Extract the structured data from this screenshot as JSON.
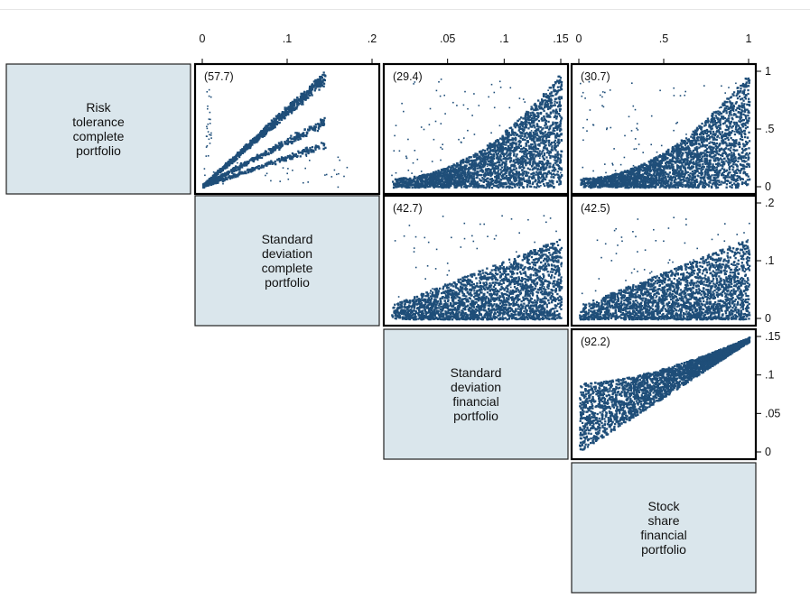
{
  "chart_data": {
    "type": "scatter",
    "variables": [
      {
        "id": "risk_tol",
        "label_lines": [
          "Risk",
          "tolerance",
          "complete",
          "portfolio"
        ],
        "range": [
          0,
          1
        ]
      },
      {
        "id": "sd_complete",
        "label_lines": [
          "Standard",
          "deviation",
          "complete",
          "portfolio"
        ],
        "range": [
          0,
          0.2
        ]
      },
      {
        "id": "sd_financial",
        "label_lines": [
          "Standard",
          "deviation",
          "financial",
          "portfolio"
        ],
        "range": [
          0,
          0.15
        ]
      },
      {
        "id": "stock_share",
        "label_lines": [
          "Stock",
          "share",
          "financial",
          "portfolio"
        ],
        "range": [
          0,
          1
        ]
      }
    ],
    "top_axes": [
      {
        "ticks": [
          0,
          0.1,
          0.2
        ],
        "tick_labels": [
          "0",
          ".1",
          ".2"
        ]
      },
      {
        "ticks": [
          0.05,
          0.1,
          0.15
        ],
        "tick_labels": [
          ".05",
          ".1",
          ".15"
        ]
      },
      {
        "ticks": [
          0,
          0.5,
          1
        ],
        "tick_labels": [
          "0",
          ".5",
          "1"
        ]
      }
    ],
    "right_axes": [
      {
        "ticks": [
          1,
          0.5,
          0
        ],
        "tick_labels": [
          "1",
          ".5",
          "0"
        ]
      },
      {
        "ticks": [
          0.2,
          0.1,
          0
        ],
        "tick_labels": [
          ".2",
          ".1",
          "0"
        ]
      },
      {
        "ticks": [
          0.15,
          0.1,
          0.05,
          0
        ],
        "tick_labels": [
          ".15",
          ".1",
          ".05",
          "0"
        ]
      }
    ],
    "panels": [
      {
        "row": 0,
        "col": 1,
        "x_var": "sd_complete",
        "y_var": "risk_tol",
        "annotation": "(57.7)",
        "pattern": "fan"
      },
      {
        "row": 0,
        "col": 2,
        "x_var": "sd_financial",
        "y_var": "risk_tol",
        "annotation": "(29.4)",
        "pattern": "rise"
      },
      {
        "row": 0,
        "col": 3,
        "x_var": "stock_share",
        "y_var": "risk_tol",
        "annotation": "(30.7)",
        "pattern": "rise"
      },
      {
        "row": 1,
        "col": 2,
        "x_var": "sd_financial",
        "y_var": "sd_complete",
        "annotation": "(42.7)",
        "pattern": "linear"
      },
      {
        "row": 1,
        "col": 3,
        "x_var": "stock_share",
        "y_var": "sd_complete",
        "annotation": "(42.5)",
        "pattern": "linear"
      },
      {
        "row": 2,
        "col": 3,
        "x_var": "stock_share",
        "y_var": "sd_financial",
        "annotation": "(92.2)",
        "pattern": "tight"
      }
    ],
    "marker_color": "#1f4e79",
    "label_box_color": "#dae6ec",
    "grid": false,
    "legend": "none"
  }
}
